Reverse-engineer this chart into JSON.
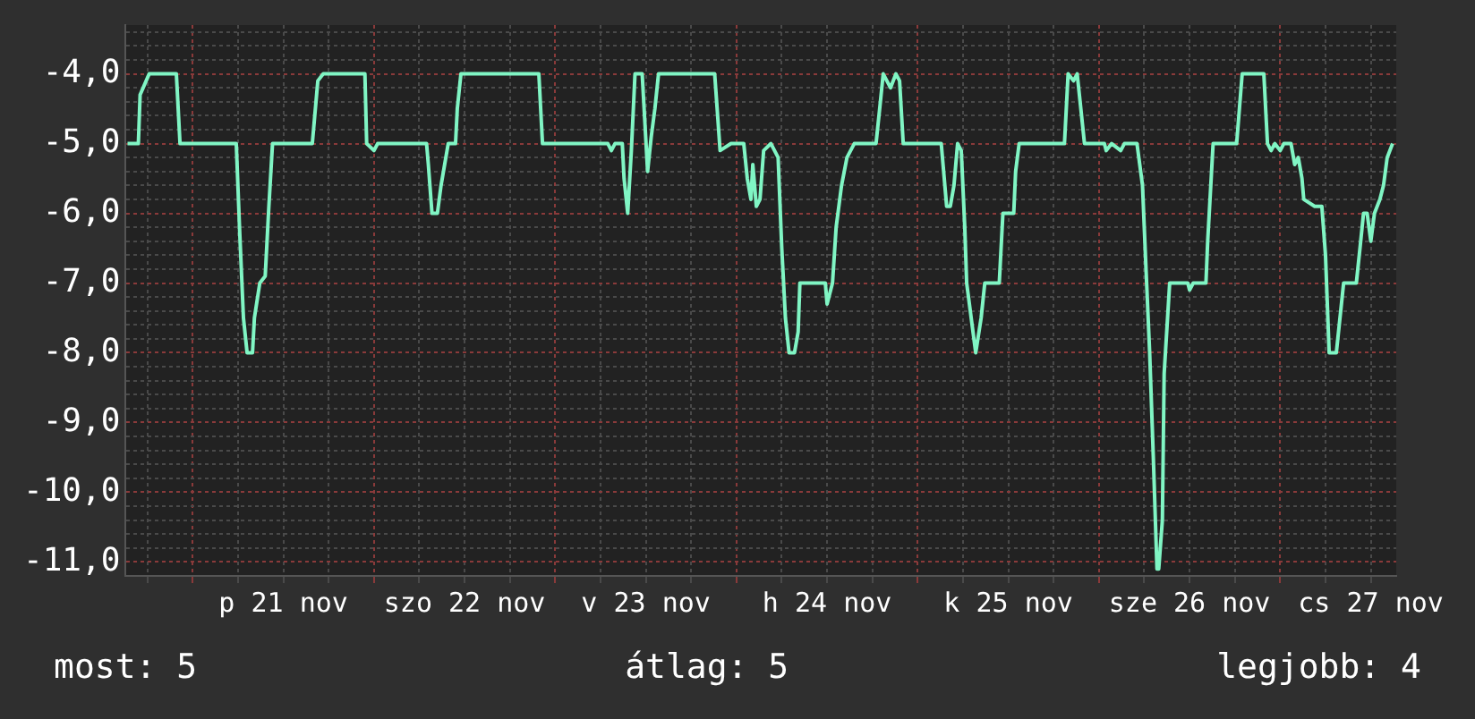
{
  "chart_data": {
    "type": "line",
    "x": [
      "--11-20T15:22",
      "--11-20T16:48",
      "--11-20T17:02",
      "--11-20T18:14",
      "--11-20T21:50",
      "--11-20T22:19",
      "--11-21T05:46",
      "--11-21T06:14",
      "--11-21T06:43",
      "--11-21T07:12",
      "--11-21T07:55",
      "--11-21T08:10",
      "--11-21T08:53",
      "--11-21T09:36",
      "--11-21T10:05",
      "--11-21T10:34",
      "--11-21T15:50",
      "--11-21T16:34",
      "--11-21T17:17",
      "--11-21T22:48",
      "--11-21T23:02",
      "--11-22T00:00",
      "--11-22T00:29",
      "--11-22T06:58",
      "--11-22T07:12",
      "--11-22T07:41",
      "--11-22T08:24",
      "--11-22T08:53",
      "--11-22T09:50",
      "--11-22T10:48",
      "--11-22T11:02",
      "--11-22T11:31",
      "--11-22T21:50",
      "--11-22T22:19",
      "--11-23T06:58",
      "--11-23T07:26",
      "--11-23T07:55",
      "--11-23T08:53",
      "--11-23T09:07",
      "--11-23T09:36",
      "--11-23T10:05",
      "--11-23T10:34",
      "--11-23T11:31",
      "--11-23T12:14",
      "--11-23T12:43",
      "--11-23T13:12",
      "--11-23T13:41",
      "--11-23T21:07",
      "--11-23T21:50",
      "--11-23T23:17",
      "--11-24T00:58",
      "--11-24T01:26",
      "--11-24T01:55",
      "--11-24T02:10",
      "--11-24T02:38",
      "--11-24T03:07",
      "--11-24T03:36",
      "--11-24T04:34",
      "--11-24T05:31",
      "--11-24T06:00",
      "--11-24T06:29",
      "--11-24T06:58",
      "--11-24T07:41",
      "--11-24T08:10",
      "--11-24T08:24",
      "--11-24T11:46",
      "--11-24T12:00",
      "--11-24T12:43",
      "--11-24T13:12",
      "--11-24T13:55",
      "--11-24T14:38",
      "--11-24T15:36",
      "--11-24T18:29",
      "--11-24T18:58",
      "--11-24T19:26",
      "--11-24T20:24",
      "--11-24T21:07",
      "--11-24T21:36",
      "--11-24T22:05",
      "--11-25T03:07",
      "--11-25T03:50",
      "--11-25T04:19",
      "--11-25T04:48",
      "--11-25T05:17",
      "--11-25T05:46",
      "--11-25T06:14",
      "--11-25T06:29",
      "--11-25T07:12",
      "--11-25T07:41",
      "--11-25T08:24",
      "--11-25T08:53",
      "--11-25T10:48",
      "--11-25T11:17",
      "--11-25T12:43",
      "--11-25T12:58",
      "--11-25T13:26",
      "--11-25T19:26",
      "--11-25T19:55",
      "--11-25T20:38",
      "--11-25T21:07",
      "--11-25T22:05",
      "--11-26T00:43",
      "--11-26T00:58",
      "--11-26T01:41",
      "--11-26T02:53",
      "--11-26T03:22",
      "--11-26T05:02",
      "--11-26T05:46",
      "--11-26T06:14",
      "--11-26T06:43",
      "--11-26T07:12",
      "--11-26T07:41",
      "--11-26T07:55",
      "--11-26T08:24",
      "--11-26T08:38",
      "--11-26T09:22",
      "--11-26T11:46",
      "--11-26T12:00",
      "--11-26T12:29",
      "--11-26T14:10",
      "--11-26T14:24",
      "--11-26T15:07",
      "--11-26T18:14",
      "--11-26T18:58",
      "--11-26T21:50",
      "--11-26T22:19",
      "--11-26T22:48",
      "--11-26T23:17",
      "--11-27T00:00",
      "--11-27T00:29",
      "--11-27T01:26",
      "--11-27T01:55",
      "--11-27T02:24",
      "--11-27T02:53",
      "--11-27T03:07",
      "--11-27T04:34",
      "--11-27T05:31",
      "--11-27T06:00",
      "--11-27T06:29",
      "--11-27T07:26",
      "--11-27T07:55",
      "--11-27T08:24",
      "--11-27T10:05",
      "--11-27T10:34",
      "--11-27T11:02",
      "--11-27T11:31",
      "--11-27T12:00",
      "--11-27T12:29",
      "--11-27T13:12",
      "--11-27T13:41",
      "--11-27T14:10",
      "--11-27T14:53"
    ],
    "series": [
      {
        "color": "#80f5c4",
        "values": [
          -5,
          -5,
          -4.3,
          -4,
          -4,
          -5,
          -5,
          -6.3,
          -7.5,
          -8,
          -8,
          -7.5,
          -7,
          -6.9,
          -5.9,
          -5,
          -5,
          -4.1,
          -4,
          -4,
          -5,
          -5.1,
          -5,
          -5,
          -5.3,
          -6,
          -6,
          -5.6,
          -5,
          -5,
          -4.5,
          -4,
          -4,
          -5,
          -5,
          -5.1,
          -5,
          -5,
          -5.5,
          -6,
          -5.1,
          -4,
          -4,
          -5.4,
          -4.9,
          -4.5,
          -4,
          -4,
          -5.1,
          -5,
          -5,
          -5.5,
          -5.8,
          -5.3,
          -5.9,
          -5.8,
          -5.1,
          -5,
          -5.2,
          -6.5,
          -7.5,
          -8,
          -8,
          -7.7,
          -7,
          -7,
          -7.3,
          -7,
          -6.2,
          -5.6,
          -5.2,
          -5,
          -5,
          -4.5,
          -4,
          -4.2,
          -4,
          -4.1,
          -5,
          -5,
          -5.9,
          -5.9,
          -5.6,
          -5,
          -5.1,
          -6.2,
          -7,
          -7.6,
          -8,
          -7.5,
          -7,
          -7,
          -6,
          -6,
          -5.4,
          -5,
          -5,
          -4,
          -4.1,
          -4,
          -5,
          -5,
          -5.1,
          -5,
          -5.1,
          -5,
          -5,
          -5.6,
          -6.8,
          -8,
          -9.5,
          -11.1,
          -11.1,
          -10.4,
          -8.3,
          -7,
          -7,
          -7.1,
          -7,
          -7,
          -6.4,
          -5,
          -5,
          -4,
          -4,
          -5,
          -5.1,
          -5,
          -5.1,
          -5,
          -5,
          -5.3,
          -5.2,
          -5.5,
          -5.8,
          -5.9,
          -5.9,
          -6.6,
          -8,
          -8,
          -7.5,
          -7,
          -7,
          -6.5,
          -6,
          -6,
          -6.4,
          -6,
          -5.8,
          -5.6,
          -5.2,
          -5
        ]
      }
    ],
    "xlim": [
      "--11-20T15:07",
      "--11-27T15:22"
    ],
    "ylim": [
      -11.2,
      -3.3
    ],
    "xticks": [
      {
        "value": "--11-20T18:00",
        "label": null
      },
      {
        "value": "--11-21T00:00",
        "label": null
      },
      {
        "value": "--11-21T06:00",
        "label": null
      },
      {
        "value": "--11-21T12:00",
        "label": "p 21 nov"
      },
      {
        "value": "--11-21T18:00",
        "label": null
      },
      {
        "value": "--11-22T00:00",
        "label": null
      },
      {
        "value": "--11-22T06:00",
        "label": null
      },
      {
        "value": "--11-22T12:00",
        "label": "szo 22 nov"
      },
      {
        "value": "--11-22T18:00",
        "label": null
      },
      {
        "value": "--11-23T00:00",
        "label": null
      },
      {
        "value": "--11-23T06:00",
        "label": null
      },
      {
        "value": "--11-23T12:00",
        "label": "v 23 nov"
      },
      {
        "value": "--11-23T18:00",
        "label": null
      },
      {
        "value": "--11-24T00:00",
        "label": null
      },
      {
        "value": "--11-24T06:00",
        "label": null
      },
      {
        "value": "--11-24T12:00",
        "label": "h 24 nov"
      },
      {
        "value": "--11-24T18:00",
        "label": null
      },
      {
        "value": "--11-25T00:00",
        "label": null
      },
      {
        "value": "--11-25T06:00",
        "label": null
      },
      {
        "value": "--11-25T12:00",
        "label": "k 25 nov"
      },
      {
        "value": "--11-25T18:00",
        "label": null
      },
      {
        "value": "--11-26T00:00",
        "label": null
      },
      {
        "value": "--11-26T06:00",
        "label": null
      },
      {
        "value": "--11-26T12:00",
        "label": "sze 26 nov"
      },
      {
        "value": "--11-26T18:00",
        "label": null
      },
      {
        "value": "--11-27T00:00",
        "label": null
      },
      {
        "value": "--11-27T06:00",
        "label": null
      },
      {
        "value": "--11-27T12:00",
        "label": "cs 27 nov"
      }
    ],
    "yticks": [
      {
        "value": -3.4,
        "label": null
      },
      {
        "value": -3.6,
        "label": null
      },
      {
        "value": -3.8,
        "label": null
      },
      {
        "value": -4,
        "label": "-4,0"
      },
      {
        "value": -4.2,
        "label": null
      },
      {
        "value": -4.4,
        "label": null
      },
      {
        "value": -4.6,
        "label": null
      },
      {
        "value": -4.8,
        "label": null
      },
      {
        "value": -5,
        "label": "-5,0"
      },
      {
        "value": -5.2,
        "label": null
      },
      {
        "value": -5.4,
        "label": null
      },
      {
        "value": -5.6,
        "label": null
      },
      {
        "value": -5.8,
        "label": null
      },
      {
        "value": -6,
        "label": "-6,0"
      },
      {
        "value": -6.2,
        "label": null
      },
      {
        "value": -6.4,
        "label": null
      },
      {
        "value": -6.6,
        "label": null
      },
      {
        "value": -6.8,
        "label": null
      },
      {
        "value": -7,
        "label": "-7,0"
      },
      {
        "value": -7.2,
        "label": null
      },
      {
        "value": -7.4,
        "label": null
      },
      {
        "value": -7.6,
        "label": null
      },
      {
        "value": -7.8,
        "label": null
      },
      {
        "value": -8,
        "label": "-8,0"
      },
      {
        "value": -8.2,
        "label": null
      },
      {
        "value": -8.4,
        "label": null
      },
      {
        "value": -8.6,
        "label": null
      },
      {
        "value": -8.8,
        "label": null
      },
      {
        "value": -9,
        "label": "-9,0"
      },
      {
        "value": -9.2,
        "label": null
      },
      {
        "value": -9.4,
        "label": null
      },
      {
        "value": -9.6,
        "label": null
      },
      {
        "value": -9.8,
        "label": null
      },
      {
        "value": -10,
        "label": "-10,0"
      },
      {
        "value": -10.2,
        "label": null
      },
      {
        "value": -10.4,
        "label": null
      },
      {
        "value": -10.6,
        "label": null
      },
      {
        "value": -10.8,
        "label": null
      },
      {
        "value": -11,
        "label": "-11,0"
      }
    ],
    "grid": true,
    "annotations": [
      "most: 5",
      "átlag: 5",
      "legjobb: 4"
    ]
  }
}
